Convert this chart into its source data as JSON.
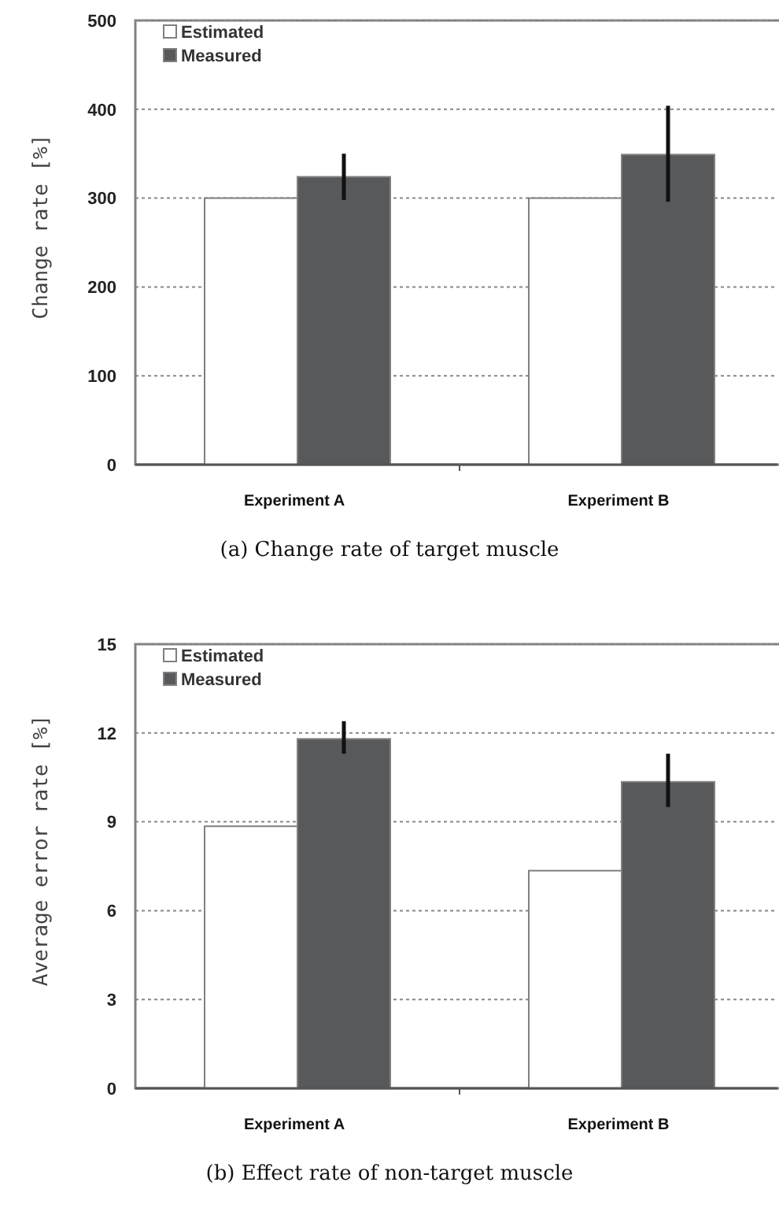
{
  "chart_data": [
    {
      "type": "bar",
      "title": "(a) Change rate of target muscle",
      "ylabel": "Change rate [%]",
      "categories": [
        "Experiment A",
        "Experiment B"
      ],
      "series": [
        {
          "name": "Estimated",
          "color": "#ffffff",
          "values": [
            300,
            300
          ]
        },
        {
          "name": "Measured",
          "color": "#58595b",
          "values": [
            324,
            349
          ],
          "errors": [
            [
              298,
              350
            ],
            [
              296,
              404
            ]
          ]
        }
      ],
      "ylim": [
        0,
        500
      ],
      "yticks": [
        0,
        100,
        200,
        300,
        400,
        500
      ],
      "grid": "y",
      "legend": "top left"
    },
    {
      "type": "bar",
      "title": "(b) Effect rate of non-target muscle",
      "ylabel": "Average error rate [%]",
      "categories": [
        "Experiment A",
        "Experiment B"
      ],
      "series": [
        {
          "name": "Estimated",
          "color": "#ffffff",
          "values": [
            8.85,
            7.35
          ]
        },
        {
          "name": "Measured",
          "color": "#58595b",
          "values": [
            11.8,
            10.35
          ],
          "errors": [
            [
              11.3,
              12.4
            ],
            [
              9.5,
              11.3
            ]
          ]
        }
      ],
      "ylim": [
        0,
        15
      ],
      "yticks": [
        0,
        3,
        6,
        9,
        12,
        15
      ],
      "grid": "y",
      "legend": "top left"
    }
  ]
}
